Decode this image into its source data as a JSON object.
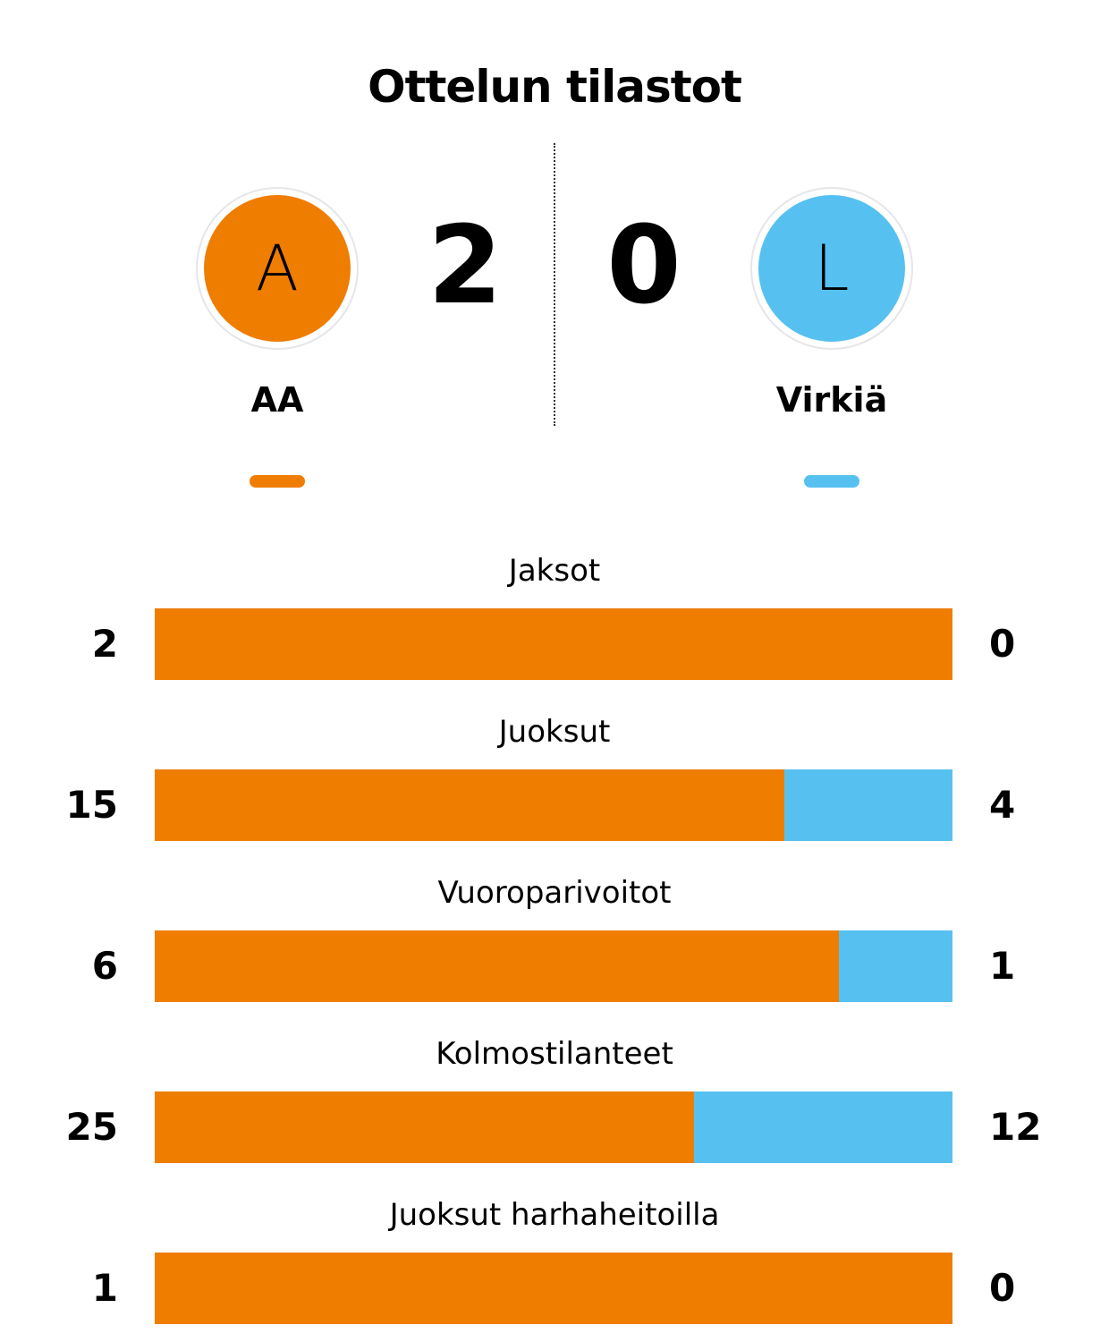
{
  "title": "Ottelun tilastot",
  "colors": {
    "home": "#EF7D00",
    "away": "#56C1F0"
  },
  "home": {
    "logo_letter": "A",
    "name": "AA",
    "score": "2"
  },
  "away": {
    "logo_letter": "L",
    "name": "Virkiä",
    "score": "0"
  },
  "stats": [
    {
      "label": "Jaksot",
      "home": 2,
      "away": 0
    },
    {
      "label": "Juoksut",
      "home": 15,
      "away": 4
    },
    {
      "label": "Vuoroparivoitot",
      "home": 6,
      "away": 1
    },
    {
      "label": "Kolmostilanteet",
      "home": 25,
      "away": 12
    },
    {
      "label": "Juoksut harhaheitoilla",
      "home": 1,
      "away": 0
    }
  ]
}
